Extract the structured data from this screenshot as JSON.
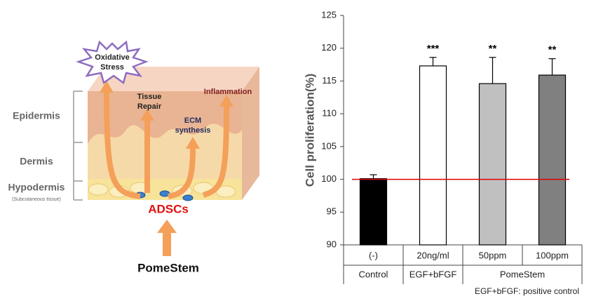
{
  "diagram": {
    "stress": [
      "Oxidative",
      "Stress"
    ],
    "layers": [
      "Epidermis",
      "Dermis",
      "Hypodermis"
    ],
    "layer_note": "(Subcutaneous tissue)",
    "repair": [
      "Tissue",
      "Repair"
    ],
    "ecm": [
      "ECM",
      "synthesis"
    ],
    "inflammation": "Inflammation",
    "cells": "ADSCs",
    "product": "PomeStem"
  },
  "chart_data": {
    "type": "bar",
    "y_label": "Cell proliferation(%)",
    "categories": [
      "(-)",
      "20ng/ml",
      "50ppm",
      "100ppm"
    ],
    "category_groups": [
      "Control",
      "EGF+bFGF",
      "PomeStem",
      "PomeStem"
    ],
    "values": [
      100.1,
      117.3,
      114.6,
      115.9
    ],
    "errors": [
      0.6,
      1.3,
      4.0,
      2.5
    ],
    "colors": [
      "#000000",
      "#ffffff",
      "#c0c0c0",
      "#808080"
    ],
    "significance": [
      null,
      "***",
      "**",
      "**"
    ],
    "reference_line": 100,
    "reference_color": "#e00000",
    "ylim": [
      90,
      125
    ],
    "yticks": [
      90,
      95,
      100,
      105,
      110,
      115,
      120,
      125
    ],
    "note": "EGF+bFGF: positive control"
  }
}
